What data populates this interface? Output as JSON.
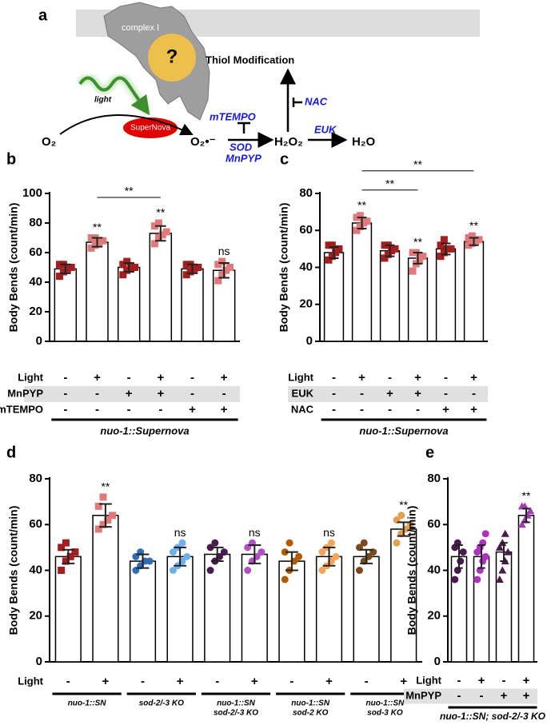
{
  "diagram": {
    "label": "a",
    "complex": "complex I",
    "question": "?",
    "thiol": "Thiol Modification",
    "light": "light",
    "supernova": "SuperNova",
    "o2": "O₂",
    "superoxide": "O₂•⁻",
    "h2o2": "H₂O₂",
    "h2o": "H₂O",
    "mtempo": "mTEMPO",
    "sod": "SOD",
    "mnpyp": "MnPYP",
    "nac": "NAC",
    "euk": "EUK"
  },
  "chart_data": [
    {
      "type": "bar",
      "label": "b",
      "y_label": "Body Bends (count/min)",
      "ylim": [
        0,
        100
      ],
      "yticks": [
        0,
        20,
        40,
        60,
        80,
        100
      ],
      "categories": [
        null,
        null,
        null,
        null,
        null,
        null
      ],
      "values": [
        49,
        67,
        50,
        73,
        49,
        48
      ],
      "errors": [
        3,
        3,
        3,
        5,
        3,
        5
      ],
      "colors": [
        "#a31f1f",
        "#e07a7a",
        "#a31f1f",
        "#e07a7a",
        "#a31f1f",
        "#e07a7a"
      ],
      "markers": [
        "square",
        "square",
        "square",
        "square",
        "square",
        "square"
      ],
      "points": [
        [
          44,
          47,
          49,
          50,
          52,
          52
        ],
        [
          63,
          65,
          67,
          68,
          70,
          70
        ],
        [
          45,
          48,
          50,
          50,
          52,
          54
        ],
        [
          66,
          70,
          72,
          74,
          78,
          80
        ],
        [
          45,
          47,
          49,
          50,
          52,
          52
        ],
        [
          41,
          45,
          48,
          50,
          52,
          54
        ]
      ],
      "significance": [
        null,
        "**",
        null,
        "**",
        null,
        "ns"
      ],
      "comparisons": [
        {
          "pair": [
            1,
            3
          ],
          "label": "**"
        }
      ],
      "conditions": [
        {
          "name": "Light",
          "values": [
            "-",
            "+",
            "-",
            "+",
            "-",
            "+"
          ]
        },
        {
          "name": "MnPYP",
          "values": [
            "-",
            "-",
            "+",
            "+",
            "-",
            "-"
          ]
        },
        {
          "name": "mTEMPO",
          "values": [
            "-",
            "-",
            "-",
            "-",
            "+",
            "+"
          ]
        }
      ],
      "groups": [
        [
          "nuo-1::Supernova"
        ]
      ]
    },
    {
      "type": "bar",
      "label": "c",
      "y_label": "Body Bends (count/min)",
      "ylim": [
        0,
        80
      ],
      "yticks": [
        0,
        20,
        40,
        60,
        80
      ],
      "categories": [
        null,
        null,
        null,
        null,
        null,
        null
      ],
      "values": [
        48,
        64,
        49,
        45,
        50,
        54
      ],
      "errors": [
        3,
        3,
        3,
        3,
        3,
        2
      ],
      "colors": [
        "#a31f1f",
        "#e07a7a",
        "#a31f1f",
        "#e07a7a",
        "#a31f1f",
        "#e07a7a"
      ],
      "markers": [
        "square",
        "square",
        "square",
        "square",
        "square",
        "square"
      ],
      "points": [
        [
          44,
          46,
          48,
          50,
          52,
          52
        ],
        [
          60,
          62,
          64,
          65,
          67,
          68
        ],
        [
          45,
          47,
          49,
          50,
          52,
          52
        ],
        [
          38,
          42,
          44,
          46,
          48,
          48
        ],
        [
          46,
          48,
          50,
          50,
          52,
          55
        ],
        [
          52,
          53,
          54,
          55,
          56,
          57
        ]
      ],
      "significance": [
        null,
        "**",
        null,
        "**",
        null,
        "**"
      ],
      "comparisons": [
        {
          "pair": [
            1,
            3
          ],
          "label": "**"
        },
        {
          "pair": [
            1,
            5
          ],
          "label": "**"
        }
      ],
      "conditions": [
        {
          "name": "Light",
          "values": [
            "-",
            "+",
            "-",
            "+",
            "-",
            "+"
          ]
        },
        {
          "name": "EUK",
          "values": [
            "-",
            "-",
            "+",
            "+",
            "-",
            "-"
          ]
        },
        {
          "name": "NAC",
          "values": [
            "-",
            "-",
            "-",
            "-",
            "+",
            "+"
          ]
        }
      ],
      "groups": [
        [
          "nuo-1::Supernova"
        ]
      ]
    },
    {
      "type": "bar",
      "label": "d",
      "y_label": "Body Bends (count/min)",
      "ylim": [
        0,
        80
      ],
      "yticks": [
        0,
        20,
        40,
        60,
        80
      ],
      "categories": [
        null,
        null,
        null,
        null,
        null,
        null,
        null,
        null,
        null,
        null
      ],
      "values": [
        46,
        64,
        44,
        46,
        47,
        47,
        44,
        46,
        46,
        58
      ],
      "errors": [
        3,
        5,
        3,
        4,
        3,
        4,
        4,
        4,
        3,
        3
      ],
      "colors": [
        "#a31f1f",
        "#e07a7a",
        "#2f6db5",
        "#6fb0ea",
        "#4b1850",
        "#b14fc5",
        "#b35a00",
        "#f5a55a",
        "#7a4a1a",
        "#e0a050"
      ],
      "markers": [
        "square",
        "square",
        "circle",
        "circle",
        "circle",
        "circle",
        "circle",
        "circle",
        "circle",
        "circle"
      ],
      "points": [
        [
          40,
          44,
          46,
          48,
          50,
          52
        ],
        [
          58,
          60,
          62,
          64,
          68,
          72
        ],
        [
          40,
          42,
          44,
          44,
          46,
          48
        ],
        [
          40,
          42,
          44,
          46,
          48,
          50,
          52
        ],
        [
          40,
          44,
          46,
          48,
          50,
          52
        ],
        [
          40,
          44,
          46,
          48,
          50,
          52
        ],
        [
          36,
          40,
          44,
          46,
          48,
          52
        ],
        [
          40,
          42,
          44,
          46,
          48,
          50,
          52
        ],
        [
          40,
          44,
          46,
          48,
          50,
          52
        ],
        [
          52,
          56,
          58,
          60,
          62,
          64
        ]
      ],
      "significance": [
        null,
        "**",
        null,
        "ns",
        null,
        "ns",
        null,
        "ns",
        null,
        "**"
      ],
      "comparisons": [],
      "conditions": [
        {
          "name": "Light",
          "values": [
            "-",
            "+",
            "-",
            "+",
            "-",
            "+",
            "-",
            "+",
            "-",
            "+"
          ]
        }
      ],
      "groups": [
        [
          "nuo-1::SN"
        ],
        [
          "sod-2/-3 KO"
        ],
        [
          "nuo-1::SN",
          "sod-2/-3 KO"
        ],
        [
          "nuo-1::SN",
          "sod-2 KO"
        ],
        [
          "nuo-1::SN",
          "sod-3 KO"
        ]
      ]
    },
    {
      "type": "bar",
      "label": "e",
      "y_label": "Body Bends (count/min)",
      "ylim": [
        0,
        80
      ],
      "yticks": [
        0,
        20,
        40,
        60,
        80
      ],
      "categories": [
        null,
        null,
        null,
        null
      ],
      "values": [
        46,
        46,
        48,
        64
      ],
      "errors": [
        5,
        5,
        4,
        3
      ],
      "colors": [
        "#4b1850",
        "#b030c0",
        "#4b1850",
        "#a040b0"
      ],
      "markers": [
        "circle",
        "circle",
        "triangle",
        "triangle"
      ],
      "points": [
        [
          36,
          40,
          44,
          48,
          50,
          52
        ],
        [
          36,
          40,
          44,
          46,
          48,
          50,
          52,
          56
        ],
        [
          36,
          40,
          44,
          48,
          50,
          52,
          56
        ],
        [
          60,
          62,
          64,
          66,
          68,
          68
        ]
      ],
      "significance": [
        null,
        null,
        null,
        "**"
      ],
      "comparisons": [],
      "conditions": [
        {
          "name": "Light",
          "values": [
            "-",
            "+",
            "-",
            "+"
          ]
        },
        {
          "name": "MnPYP",
          "values": [
            "-",
            "-",
            "+",
            "+"
          ]
        }
      ],
      "groups": [
        [
          "nuo-1::SN; sod-2/-3 KO"
        ]
      ]
    }
  ]
}
